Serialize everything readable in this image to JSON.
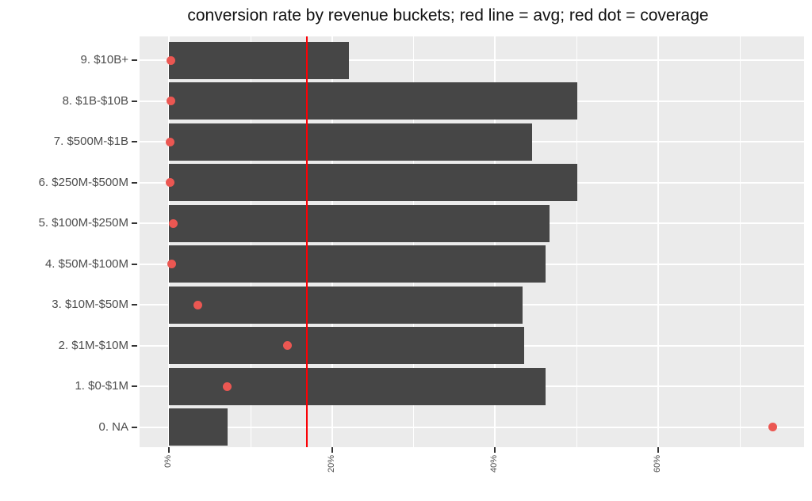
{
  "title": "conversion rate by revenue buckets; red line = avg; red dot = coverage",
  "chart_data": {
    "type": "bar",
    "orientation": "horizontal",
    "title": "conversion rate by revenue buckets; red line = avg; red dot = coverage",
    "categories": [
      "9. $10B+",
      "8. $1B-$10B",
      "7. $500M-$1B",
      "6. $250M-$500M",
      "5. $100M-$250M",
      "4. $50M-$100M",
      "3. $10M-$50M",
      "2. $1M-$10M",
      "1. $0-$1M",
      "0. NA"
    ],
    "series": [
      {
        "name": "conversion rate (bar)",
        "values": [
          22.1,
          50.1,
          44.5,
          50.1,
          46.7,
          46.2,
          43.4,
          43.6,
          46.2,
          7.2
        ],
        "unit": "%",
        "color": "#464646"
      },
      {
        "name": "coverage (red dot)",
        "values": [
          0.2,
          0.2,
          0.1,
          0.1,
          0.5,
          0.3,
          3.5,
          14.5,
          7.1,
          74.1
        ],
        "unit": "%",
        "color": "#eb5752"
      }
    ],
    "avg_line": {
      "value": 16.9,
      "unit": "%",
      "color": "#fb0005"
    },
    "x_axis": {
      "tick_labels": [
        "0%",
        "20%",
        "40%",
        "60%"
      ],
      "tick_values": [
        0,
        20,
        40,
        60
      ],
      "minor_tick_values": [
        10,
        30,
        50,
        70
      ],
      "xlim": [
        -3.6,
        77.9
      ],
      "label_angle_deg": 90
    },
    "y_axis": {
      "type": "categorical"
    },
    "legend": "none",
    "grid": true,
    "panel_bg": "#ebebeb",
    "grid_color": "#ffffff",
    "axis_text_color": "#4d4d4d"
  }
}
